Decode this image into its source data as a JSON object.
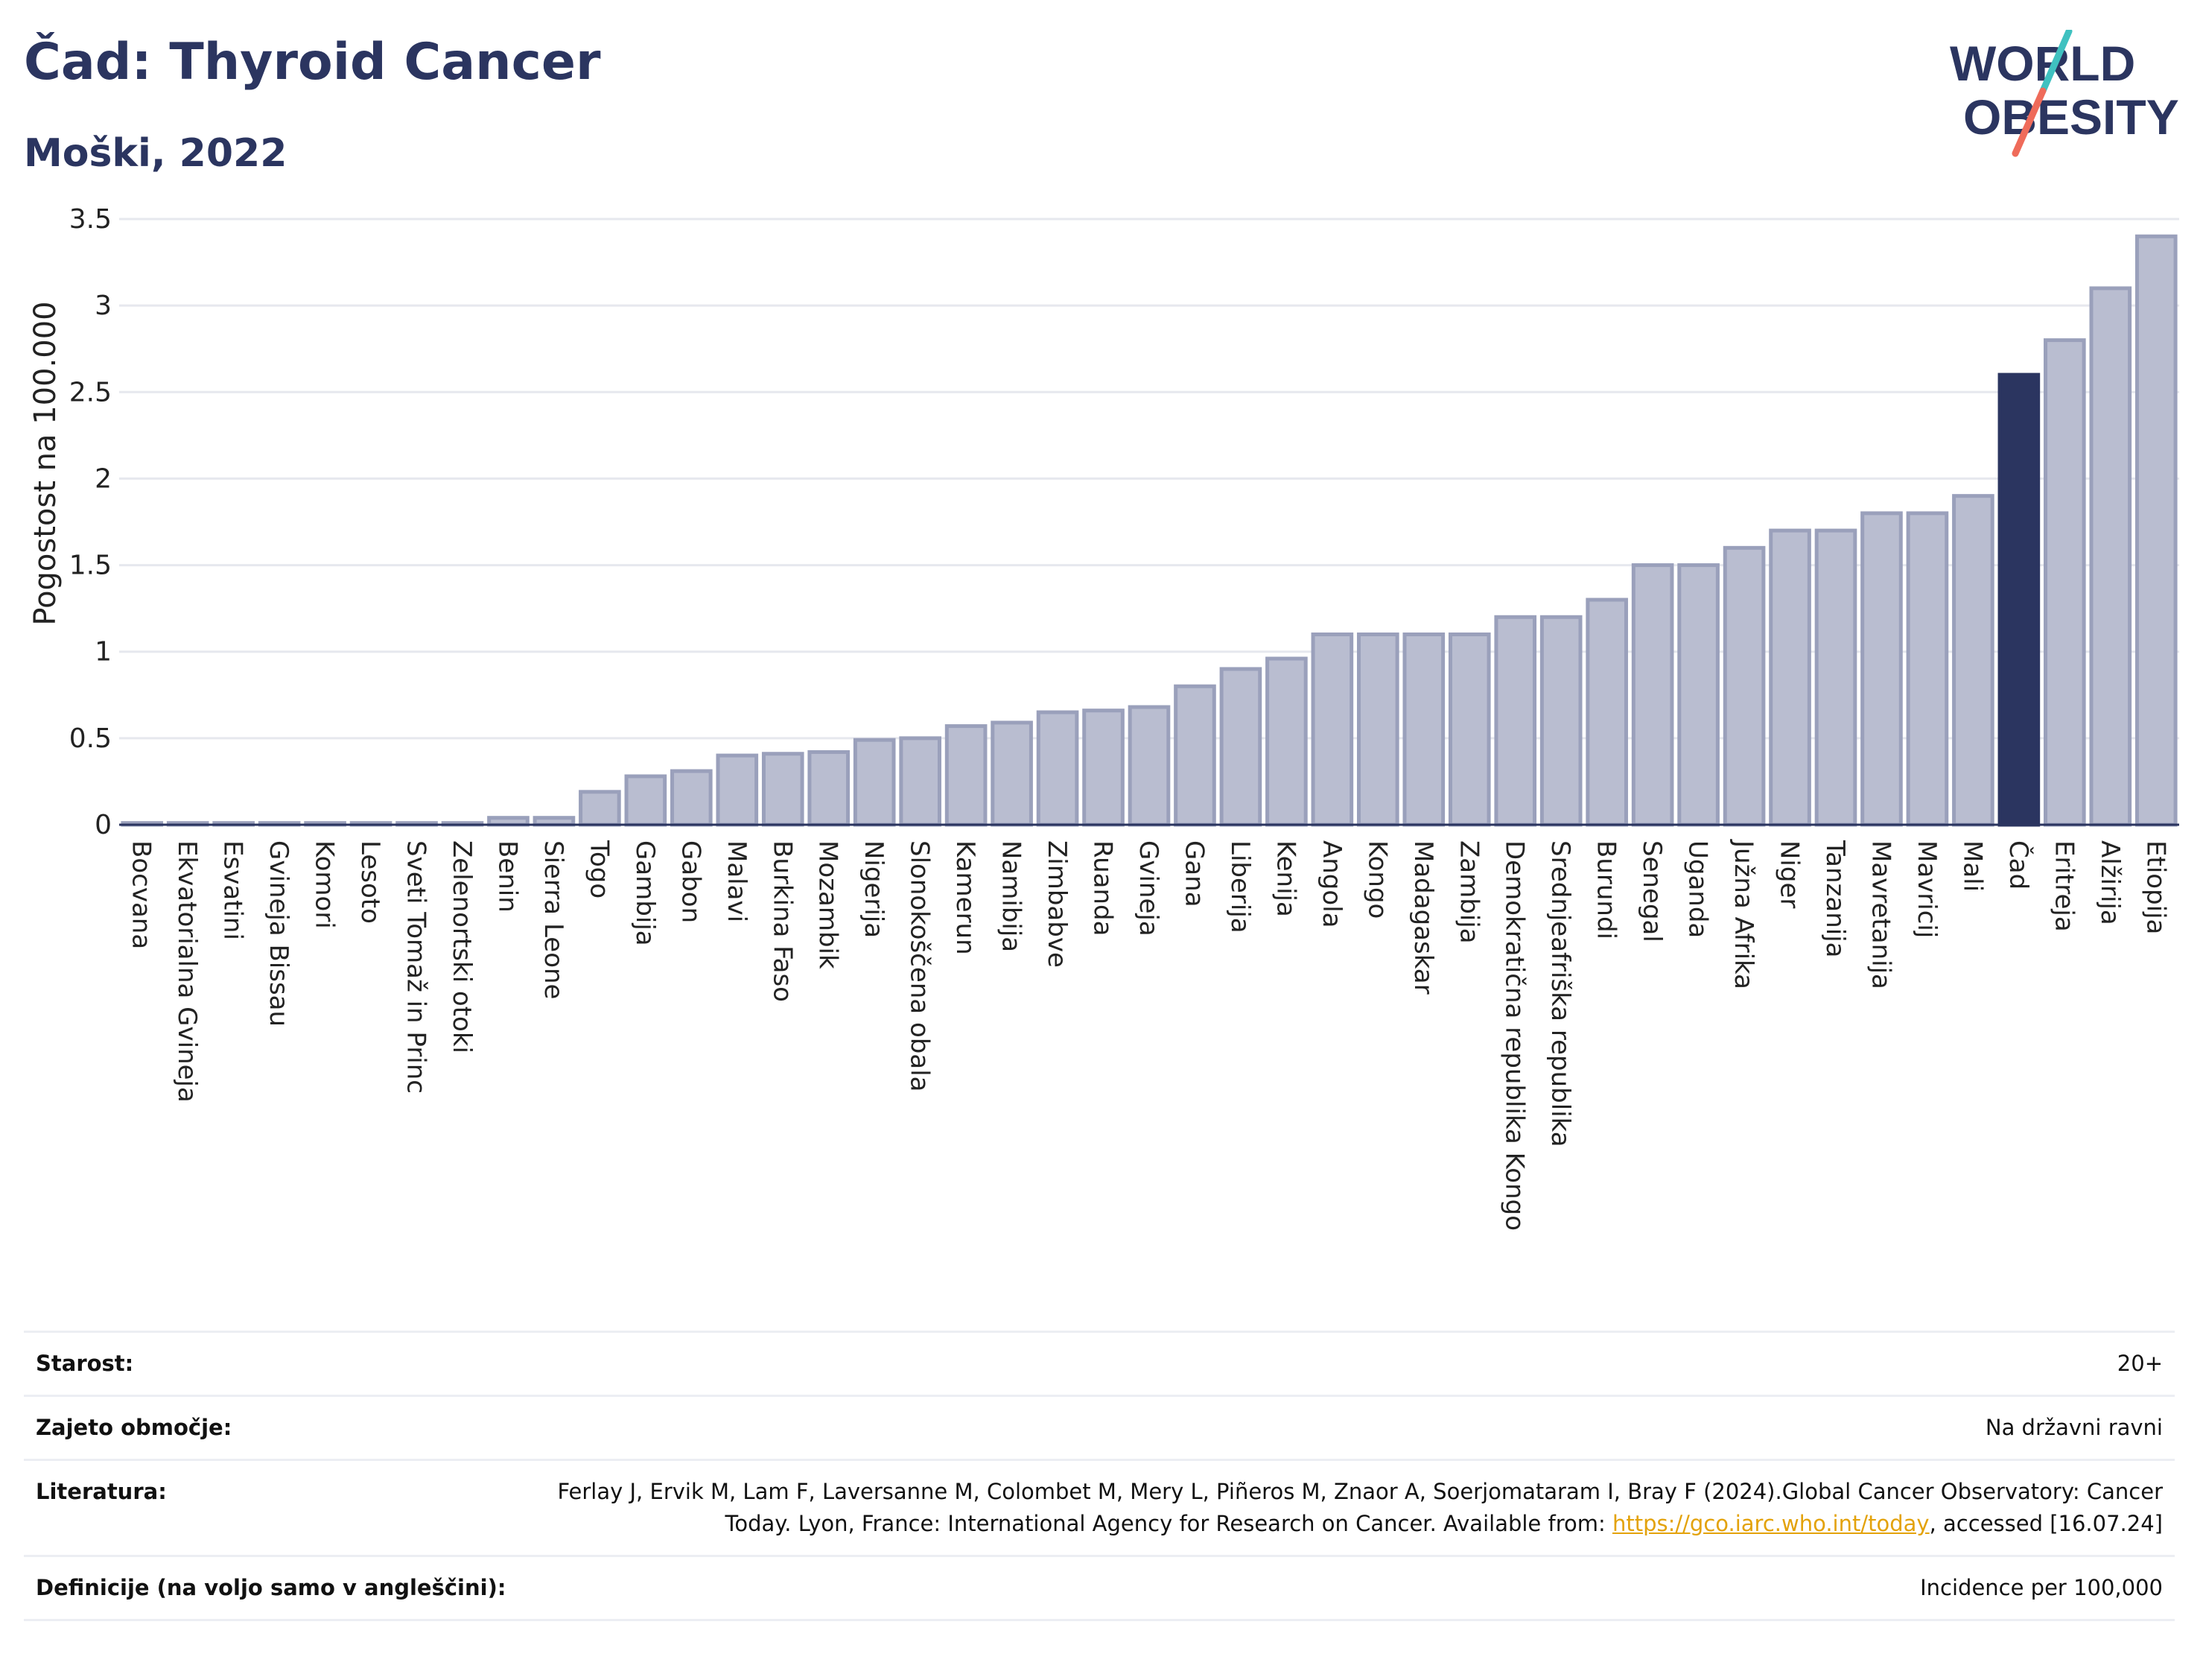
{
  "header": {
    "title": "Čad: Thyroid Cancer",
    "subtitle": "Moški, 2022",
    "logo_text_1": "WORLD",
    "logo_text_2": "OBESITY"
  },
  "colors": {
    "bar_default": "#b9bdd0",
    "bar_default_stroke": "#9aa0bb",
    "bar_highlight": "#2b3560",
    "title": "#2b3560",
    "link": "#e3a20b",
    "logo_teal": "#3fc1c0",
    "logo_coral": "#ef6b5a"
  },
  "chart_data": {
    "type": "bar",
    "title": "Čad: Thyroid Cancer",
    "subtitle": "Moški, 2022",
    "ylabel": "Pogostost na 100.000",
    "ylim": [
      0,
      3.5
    ],
    "yticks": [
      0,
      0.5,
      1,
      1.5,
      2,
      2.5,
      3,
      3.5
    ],
    "ytick_labels": [
      "0",
      "0.5",
      "1",
      "1.5",
      "2",
      "2.5",
      "3",
      "3.5"
    ],
    "grid": true,
    "highlight": "Čad",
    "categories": [
      "Bocvana",
      "Ekvatorialna Gvineja",
      "Esvatini",
      "Gvineja Bissau",
      "Komori",
      "Lesoto",
      "Sveti Tomaž in Princ",
      "Zelenortski otoki",
      "Benin",
      "Sierra Leone",
      "Togo",
      "Gambija",
      "Gabon",
      "Malavi",
      "Burkina Faso",
      "Mozambik",
      "Nigerija",
      "Slonokoščena obala",
      "Kamerun",
      "Namibija",
      "Zimbabve",
      "Ruanda",
      "Gvineja",
      "Gana",
      "Liberija",
      "Kenija",
      "Angola",
      "Kongo",
      "Madagaskar",
      "Zambija",
      "Demokratična republika Kongo",
      "Srednjeafriška republika",
      "Burundi",
      "Senegal",
      "Uganda",
      "Južna Afrika",
      "Niger",
      "Tanzanija",
      "Mavretanija",
      "Mavricij",
      "Mali",
      "Čad",
      "Eritreja",
      "Alžirija",
      "Etiopija"
    ],
    "values": [
      0.01,
      0.01,
      0.01,
      0.01,
      0.01,
      0.01,
      0.01,
      0.01,
      0.04,
      0.04,
      0.19,
      0.28,
      0.31,
      0.4,
      0.41,
      0.42,
      0.49,
      0.5,
      0.57,
      0.59,
      0.65,
      0.66,
      0.68,
      0.8,
      0.9,
      0.96,
      1.1,
      1.1,
      1.1,
      1.1,
      1.2,
      1.2,
      1.3,
      1.5,
      1.5,
      1.6,
      1.7,
      1.7,
      1.8,
      1.8,
      1.9,
      2.6,
      2.8,
      3.1,
      3.4
    ]
  },
  "info": {
    "age_label": "Starost:",
    "age_value": "20+",
    "coverage_label": "Zajeto območje:",
    "coverage_value": "Na državni ravni",
    "refs_label": "Literatura:",
    "refs_text_1": "Ferlay J, Ervik M, Lam F, Laversanne M, Colombet M, Mery L, Piñeros M, Znaor A, Soerjomataram I, Bray F (2024).Global Cancer Observatory: Cancer Today. Lyon, France: International Agency for Research on Cancer. Available from: ",
    "refs_link": "https://gco.iarc.who.int/today",
    "refs_text_2": ", accessed [16.07.24]",
    "defs_label": "Definicije (na voljo samo v angleščini):",
    "defs_value": "Incidence per 100,000"
  }
}
